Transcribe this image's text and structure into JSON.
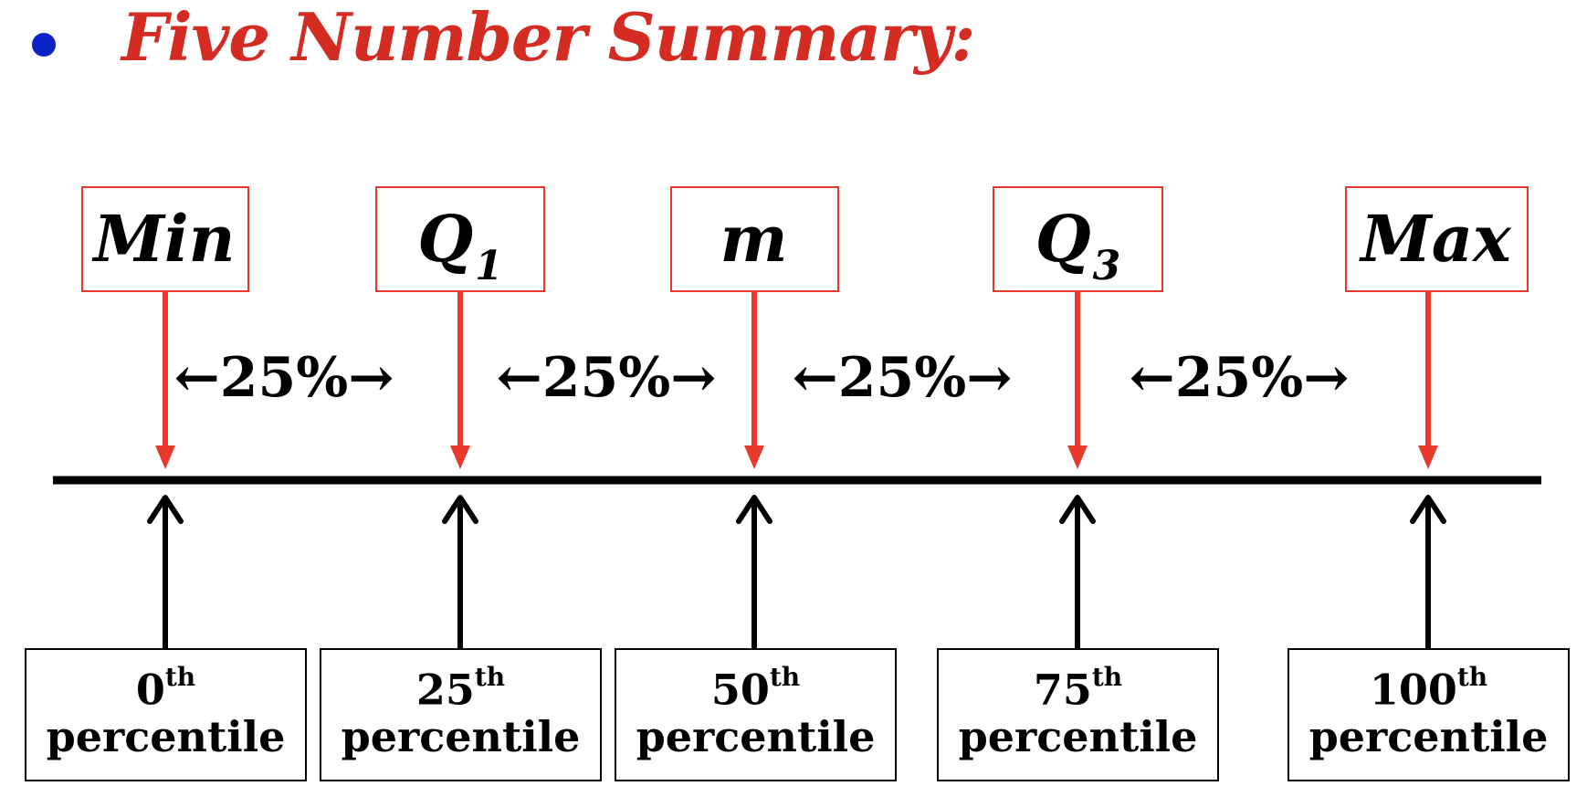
{
  "title": "Five Number Summary:",
  "colors": {
    "bullet": "#0b22c4",
    "title": "#d42b22",
    "red_arrow": "#e8392c",
    "black": "#000000"
  },
  "statistics": [
    {
      "symbol": "Min",
      "subscript": "",
      "percentile_number": "0",
      "percentile_suffix": "th",
      "percentile_word": "percentile"
    },
    {
      "symbol": "Q",
      "subscript": "1",
      "percentile_number": "25",
      "percentile_suffix": "th",
      "percentile_word": "percentile"
    },
    {
      "symbol": "m",
      "subscript": "",
      "percentile_number": "50",
      "percentile_suffix": "th",
      "percentile_word": "percentile"
    },
    {
      "symbol": "Q",
      "subscript": "3",
      "percentile_number": "75",
      "percentile_suffix": "th",
      "percentile_word": "percentile"
    },
    {
      "symbol": "Max",
      "subscript": "",
      "percentile_number": "100",
      "percentile_suffix": "th",
      "percentile_word": "percentile"
    }
  ],
  "gaps": [
    {
      "label": "←25%→"
    },
    {
      "label": "←25%→"
    },
    {
      "label": "←25%→"
    },
    {
      "label": "←25%→"
    }
  ]
}
